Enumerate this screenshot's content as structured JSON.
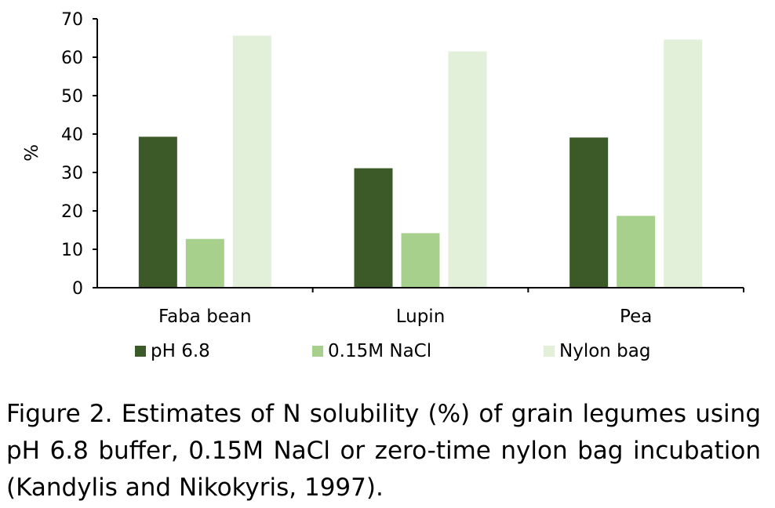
{
  "chart_data": {
    "type": "bar",
    "categories": [
      "Faba bean",
      "Lupin",
      "Pea"
    ],
    "series": [
      {
        "name": "pH 6.8",
        "color": "#3c5a27",
        "values": [
          39.3,
          31.1,
          39.1
        ]
      },
      {
        "name": "0.15M NaCl",
        "color": "#a8d08d",
        "values": [
          12.7,
          14.2,
          18.7
        ]
      },
      {
        "name": "Nylon bag",
        "color": "#e2efd9",
        "values": [
          65.6,
          61.5,
          64.6
        ]
      }
    ],
    "ylabel": "%",
    "xlabel": "",
    "ylim": [
      0,
      70
    ],
    "yticks": [
      0,
      10,
      20,
      30,
      40,
      50,
      60,
      70
    ],
    "grid": false,
    "legend_position": "bottom"
  },
  "caption": "Figure 2. Estimates of N solubility (%) of grain legumes using pH 6.8 buffer, 0.15M NaCl or zero-time nylon bag incubation (Kandylis and Nikokyris, 1997)."
}
